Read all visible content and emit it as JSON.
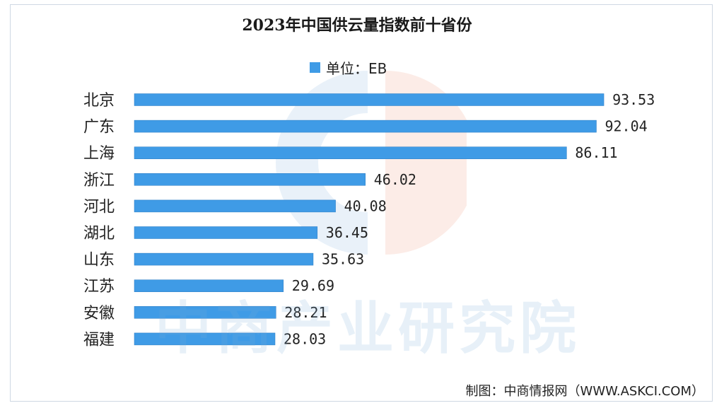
{
  "title": "2023年中国供云量指数前十省份",
  "source": "制图：中商情报网（WWW.ASKCI.COM）",
  "watermark": "中商产业研究院",
  "colors": {
    "bar": "#3f9be6",
    "bar_edge": "#2b7cc4"
  },
  "chart_data": {
    "type": "bar",
    "orientation": "horizontal",
    "categories": [
      "北京",
      "广东",
      "上海",
      "浙江",
      "河北",
      "湖北",
      "山东",
      "江苏",
      "安徽",
      "福建"
    ],
    "series": [
      {
        "name": "单位：EB",
        "values": [
          93.53,
          92.04,
          86.11,
          46.02,
          40.08,
          36.45,
          35.63,
          29.69,
          28.21,
          28.03
        ]
      }
    ],
    "value_labels": [
      "93.53",
      "92.04",
      "86.11",
      "46.02",
      "40.08",
      "36.45",
      "35.63",
      "29.69",
      "28.21",
      "28.03"
    ],
    "title": "2023年中国供云量指数前十省份",
    "xlabel": "",
    "ylabel": "",
    "xlim": [
      0,
      100
    ],
    "grid": false,
    "legend": "top-center"
  }
}
